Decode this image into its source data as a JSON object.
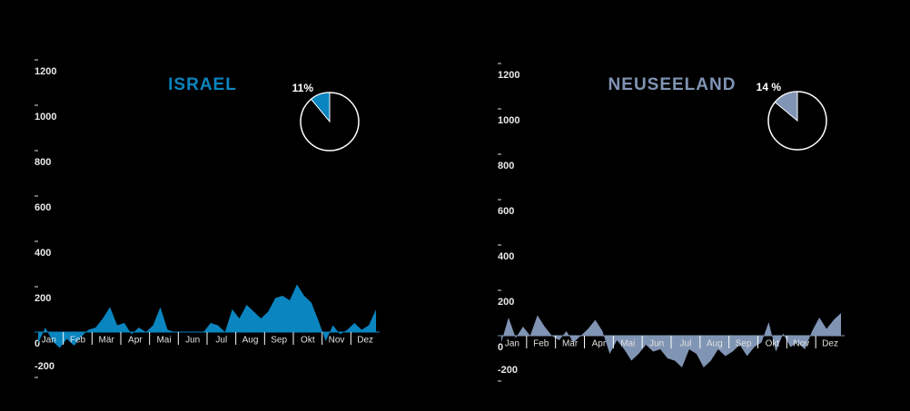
{
  "chart_data": [
    {
      "type": "area",
      "title": "ISRAEL",
      "color": "#0a85c0",
      "categories": [
        "Jan",
        null,
        null,
        null,
        "Feb",
        null,
        null,
        null,
        "Mär",
        null,
        null,
        null,
        "Apr",
        null,
        null,
        null,
        "Mai",
        null,
        null,
        null,
        "Jun",
        null,
        null,
        null,
        "Jul",
        null,
        null,
        null,
        "Aug",
        null,
        null,
        null,
        "Sep",
        null,
        null,
        null,
        "Okt",
        null,
        null,
        null,
        "Nov",
        null,
        null,
        null,
        "Dez",
        null,
        null,
        null
      ],
      "values": [
        -50,
        20,
        -40,
        -70,
        -30,
        -60,
        -20,
        10,
        20,
        60,
        110,
        30,
        40,
        -10,
        20,
        0,
        30,
        110,
        10,
        0,
        0,
        0,
        0,
        0,
        40,
        30,
        0,
        100,
        60,
        120,
        90,
        60,
        90,
        150,
        160,
        140,
        210,
        160,
        130,
        50,
        -40,
        30,
        -10,
        10,
        40,
        10,
        30,
        100
      ],
      "ylim": [
        -300,
        1300
      ],
      "yticks": [
        -200,
        0,
        200,
        400,
        600,
        800,
        1000,
        1200
      ],
      "pie": {
        "values": [
          11
        ],
        "value_labels": [
          "11%"
        ]
      }
    },
    {
      "type": "area",
      "title": "NEUSEELAND",
      "color": "#8094b4",
      "categories": [
        "Jan",
        null,
        null,
        null,
        "Feb",
        null,
        null,
        null,
        "Mär",
        null,
        null,
        null,
        "Apr",
        null,
        null,
        null,
        "Mai",
        null,
        null,
        null,
        "Jun",
        null,
        null,
        null,
        "Jul",
        null,
        null,
        null,
        "Aug",
        null,
        null,
        null,
        "Sep",
        null,
        null,
        null,
        "Okt",
        null,
        null,
        null,
        "Nov",
        null,
        null,
        null,
        "Dez",
        null,
        null,
        null
      ],
      "values": [
        -30,
        80,
        -10,
        40,
        0,
        90,
        40,
        0,
        -20,
        20,
        -30,
        0,
        30,
        70,
        20,
        -80,
        -20,
        -60,
        -110,
        -80,
        -40,
        -70,
        -60,
        -100,
        -110,
        -140,
        -60,
        -80,
        -140,
        -110,
        -60,
        -90,
        -70,
        -40,
        -90,
        -50,
        -30,
        60,
        -70,
        10,
        -50,
        -30,
        -60,
        20,
        80,
        30,
        70,
        100
      ],
      "ylim": [
        -300,
        1300
      ],
      "yticks": [
        -200,
        0,
        200,
        400,
        600,
        800,
        1000,
        1200
      ],
      "pie": {
        "values": [
          14
        ],
        "value_labels": [
          "14 %"
        ]
      }
    }
  ]
}
